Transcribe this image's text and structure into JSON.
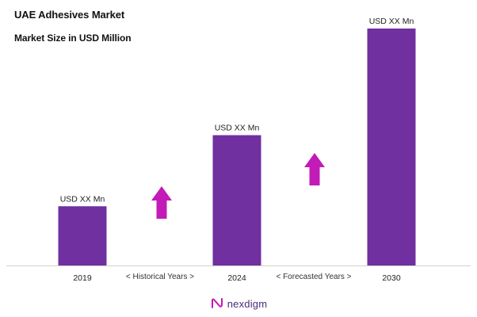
{
  "chart_data": {
    "type": "bar",
    "title": "UAE Adhesives Market",
    "subtitle": "Market Size in USD Million",
    "categories": [
      "2019",
      "2024",
      "2030"
    ],
    "values": [
      1,
      2.2,
      4
    ],
    "data_labels": [
      "USD XX Mn",
      "USD XX Mn",
      "USD XX Mn"
    ],
    "period_labels": [
      "< Historical Years >",
      "< Forecasted Years >"
    ],
    "xlabel": "",
    "ylabel": "",
    "ylim": [
      0,
      4
    ],
    "grid": false,
    "legend": "none",
    "colors": {
      "bar": "#7030a0",
      "arrow": "#c21bb8",
      "axis": "#d0d0d0"
    }
  },
  "brand": {
    "name": "nexdigm"
  }
}
